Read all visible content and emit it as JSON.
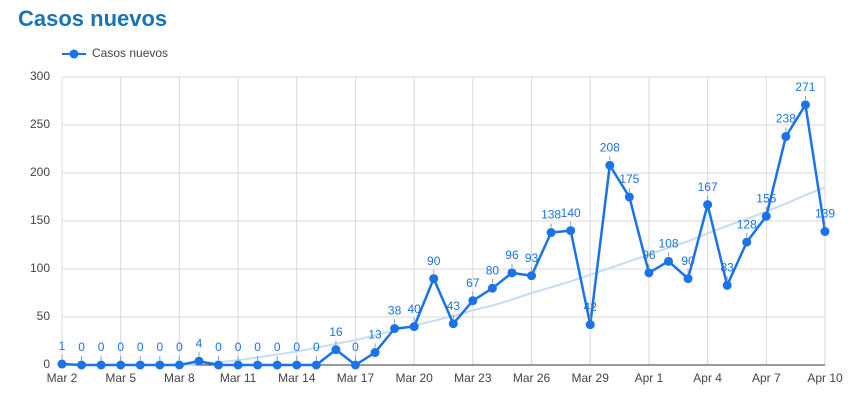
{
  "chart_data": {
    "type": "line",
    "title": "Casos nuevos",
    "categories": [
      "Mar 2",
      null,
      null,
      "Mar 5",
      null,
      null,
      "Mar 8",
      null,
      null,
      "Mar 11",
      null,
      null,
      "Mar 14",
      null,
      null,
      "Mar 17",
      null,
      null,
      "Mar 20",
      null,
      null,
      "Mar 23",
      null,
      null,
      "Mar 26",
      null,
      null,
      "Mar 29",
      null,
      null,
      "Apr 1",
      null,
      null,
      "Apr 4",
      null,
      null,
      "Apr 7",
      null,
      null,
      "Apr 10"
    ],
    "series": [
      {
        "name": "Casos nuevos",
        "color": "#1a73e8",
        "values": [
          1,
          0,
          0,
          0,
          0,
          0,
          0,
          4,
          0,
          0,
          0,
          0,
          0,
          0,
          16,
          0,
          13,
          38,
          40,
          90,
          43,
          67,
          80,
          96,
          93,
          138,
          140,
          42,
          208,
          175,
          96,
          108,
          90,
          167,
          83,
          128,
          155,
          238,
          271,
          139
        ]
      }
    ],
    "trendline": {
      "color": "#c6dcf5",
      "values": [
        0,
        0,
        0,
        0,
        0,
        0,
        0,
        1,
        3,
        5,
        8,
        11,
        14,
        18,
        22,
        26,
        31,
        36,
        41,
        46,
        51,
        57,
        62,
        68,
        75,
        81,
        87,
        94,
        101,
        108,
        115,
        122,
        129,
        137,
        145,
        152,
        160,
        168,
        177,
        185
      ]
    },
    "ylim": [
      0,
      300
    ],
    "yticks": [
      0,
      50,
      100,
      150,
      200,
      250,
      300
    ],
    "grid": true
  }
}
